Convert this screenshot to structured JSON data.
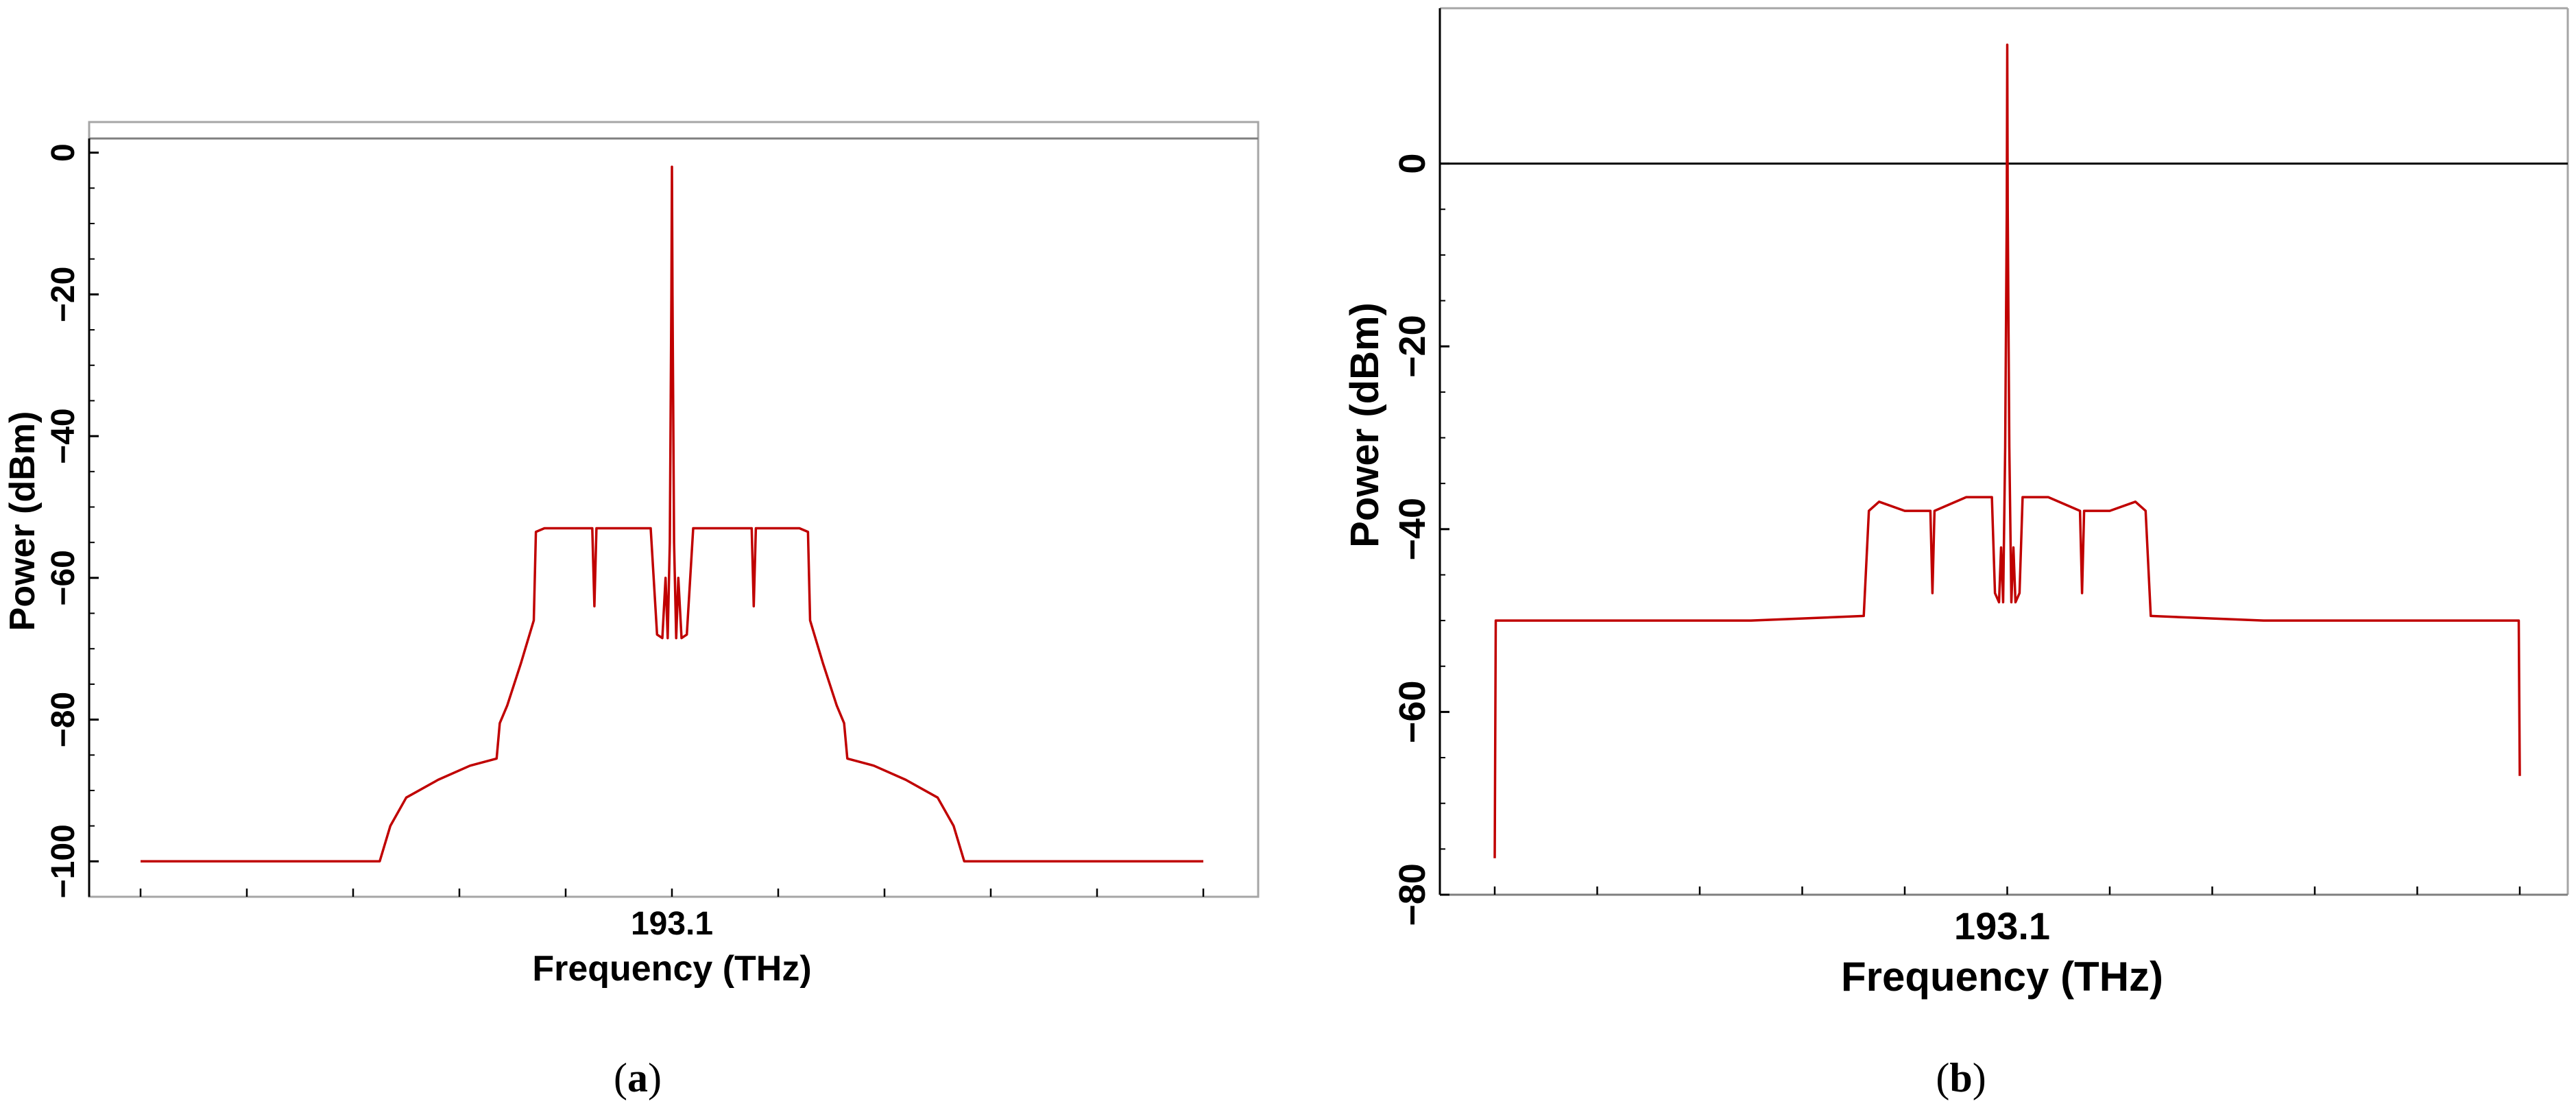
{
  "chart_data": [
    {
      "type": "line",
      "panel_label": "a",
      "xlabel": "Frequency (THz)",
      "ylabel": "Power (dBm)",
      "x_tick_labels": [
        "193.1"
      ],
      "y_ticks": [
        0,
        -20,
        -40,
        -60,
        -80,
        -100
      ],
      "y_tick_labels": [
        "0",
        "−20",
        "−40",
        "−60",
        "−80",
        "−100"
      ],
      "ylim": [
        -105,
        2
      ],
      "x_range_rel": [
        -0.5,
        0.5
      ],
      "zero_line": false,
      "color": "#c00000",
      "series": [
        {
          "x": [
            -0.5,
            -0.275,
            -0.265,
            -0.25,
            -0.22,
            -0.19,
            -0.165,
            -0.162,
            -0.155,
            -0.142,
            -0.13,
            -0.128,
            -0.12,
            -0.075,
            -0.073,
            -0.071,
            -0.069,
            -0.02,
            -0.014,
            -0.009,
            -0.006,
            -0.004,
            -0.002,
            -0.0005,
            0,
            0.0005,
            0.002,
            0.004,
            0.006,
            0.009,
            0.014,
            0.02,
            0.075,
            0.077,
            0.079,
            0.12,
            0.128,
            0.13,
            0.142,
            0.155,
            0.162,
            0.165,
            0.19,
            0.22,
            0.25,
            0.265,
            0.275,
            0.5
          ],
          "y": [
            -100,
            -100,
            -95,
            -91,
            -88.5,
            -86.5,
            -85.5,
            -80.5,
            -78,
            -72,
            -66,
            -53.5,
            -53,
            -53,
            -64,
            -53,
            -53,
            -53,
            -68,
            -68.5,
            -60,
            -68.5,
            -55,
            -20,
            -2,
            -20,
            -55,
            -68.5,
            -60,
            -68.5,
            -68,
            -53,
            -53,
            -64,
            -53,
            -53,
            -53.5,
            -66,
            -72,
            -78,
            -80.5,
            -85.5,
            -86.5,
            -88.5,
            -91,
            -95,
            -100,
            -100
          ]
        }
      ]
    },
    {
      "type": "line",
      "panel_label": "b",
      "xlabel": "Frequency (THz)",
      "ylabel": "Power (dBm)",
      "x_tick_labels": [
        "193.1"
      ],
      "y_ticks": [
        0,
        -20,
        -40,
        -60,
        -80
      ],
      "y_tick_labels": [
        "0",
        "−20",
        "−40",
        "−60",
        "−80"
      ],
      "ylim": [
        -80,
        17
      ],
      "x_range_rel": [
        -0.5,
        0.5
      ],
      "zero_line": true,
      "color": "#c00000",
      "series": [
        {
          "x": [
            -0.5,
            -0.499,
            -0.497,
            -0.25,
            -0.14,
            -0.135,
            -0.125,
            -0.1,
            -0.075,
            -0.073,
            -0.071,
            -0.04,
            -0.015,
            -0.012,
            -0.008,
            -0.006,
            -0.004,
            -0.002,
            -0.0005,
            0,
            0.0005,
            0.002,
            0.004,
            0.006,
            0.008,
            0.012,
            0.015,
            0.04,
            0.071,
            0.073,
            0.075,
            0.1,
            0.125,
            0.135,
            0.14,
            0.25,
            0.497,
            0.499,
            0.5
          ],
          "y": [
            -76,
            -50,
            -50,
            -50,
            -49.5,
            -38,
            -37,
            -38,
            -38,
            -47,
            -38,
            -36.5,
            -36.5,
            -47,
            -48,
            -42,
            -48,
            -31,
            -5,
            13,
            -5,
            -31,
            -48,
            -42,
            -48,
            -47,
            -36.5,
            -36.5,
            -38,
            -47,
            -38,
            -38,
            -37,
            -38,
            -49.5,
            -50,
            -50,
            -50,
            -67
          ]
        }
      ]
    }
  ]
}
